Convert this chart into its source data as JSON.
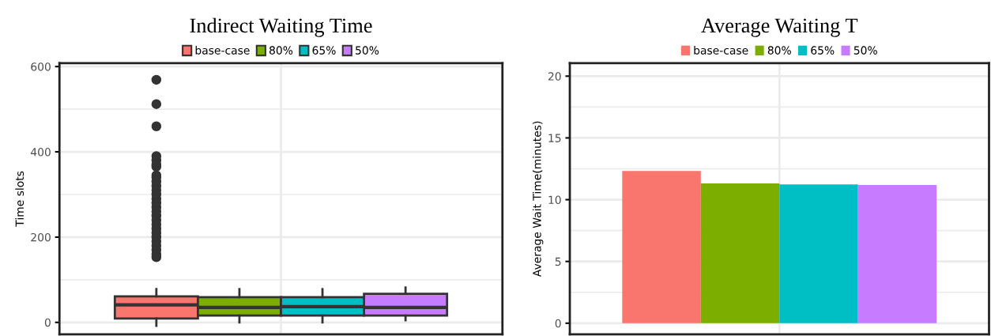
{
  "chart_data": [
    {
      "type": "box",
      "title": "Indirect Waiting Time",
      "ylabel": "Time slots",
      "categories": [
        null
      ],
      "ylim": [
        -28,
        608
      ],
      "yticks": [
        0,
        200,
        400,
        600
      ],
      "grid": true,
      "legend": "top",
      "tick_labels": "y",
      "series": [
        {
          "name": "base-case",
          "color": "#f8766d",
          "boxes": [
            {
              "low": -8,
              "q1": 9,
              "median": 41,
              "q3": 61,
              "high": 78,
              "outliers": [
                153,
                160,
                170,
                180,
                190,
                200,
                210,
                220,
                230,
                240,
                250,
                260,
                270,
                280,
                290,
                300,
                310,
                320,
                330,
                340,
                345,
                365,
                370,
                380,
                390,
                460,
                512,
                569
              ]
            }
          ]
        },
        {
          "name": "80%",
          "color": "#7cae00",
          "boxes": [
            {
              "low": 0,
              "q1": 16,
              "median": 35,
              "q3": 59,
              "high": 78
            }
          ]
        },
        {
          "name": "65%",
          "color": "#00bfc4",
          "boxes": [
            {
              "low": 0,
              "q1": 16,
              "median": 37,
              "q3": 59,
              "high": 78
            }
          ]
        },
        {
          "name": "50%",
          "color": "#c77cff",
          "boxes": [
            {
              "low": 5,
              "q1": 16,
              "median": 35,
              "q3": 67,
              "high": 82
            }
          ]
        }
      ]
    },
    {
      "type": "bar",
      "title": "Average Waiting T",
      "ylabel": "Average Wait Time(minutes)",
      "categories": [
        null
      ],
      "ylim": [
        -0.9,
        21.05
      ],
      "yticks": [
        0,
        5,
        10,
        15,
        20
      ],
      "grid": true,
      "legend": "top",
      "tick_labels": "y",
      "series": [
        {
          "name": "base-case",
          "color": "#f8766d",
          "values": [
            12.33
          ]
        },
        {
          "name": "80%",
          "color": "#7cae00",
          "values": [
            11.31
          ]
        },
        {
          "name": "65%",
          "color": "#00bfc4",
          "values": [
            11.23
          ]
        },
        {
          "name": "50%",
          "color": "#c77cff",
          "values": [
            11.18
          ]
        }
      ]
    }
  ]
}
